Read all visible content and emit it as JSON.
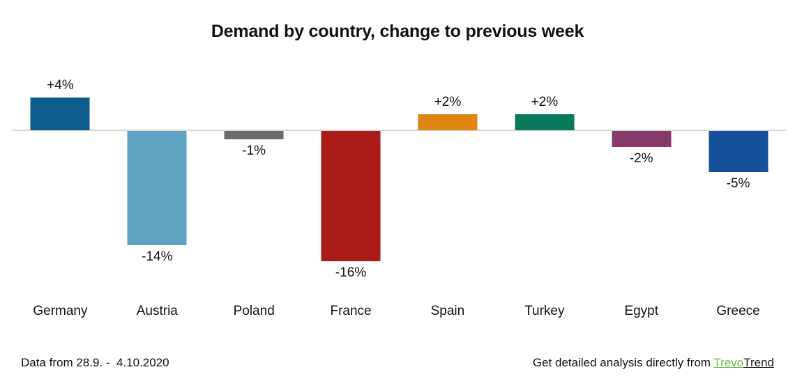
{
  "title": "Demand by country, change to previous week",
  "chart_data": {
    "type": "bar",
    "title": "Demand by country, change to previous week",
    "categories": [
      "Germany",
      "Austria",
      "Poland",
      "France",
      "Spain",
      "Turkey",
      "Egypt",
      "Greece"
    ],
    "values": [
      4,
      -14,
      -1,
      -16,
      2,
      2,
      -2,
      -5
    ],
    "value_labels": [
      "+4%",
      "-14%",
      "-1%",
      "-16%",
      "+2%",
      "+2%",
      "-2%",
      "-5%"
    ],
    "bar_colors": [
      "#0e5c8e",
      "#5fa3c2",
      "#6c6b69",
      "#aa1c17",
      "#e08511",
      "#077a5c",
      "#853a68",
      "#164f9c"
    ],
    "unit": "%",
    "xlabel": "",
    "ylabel": "",
    "ylim": [
      -16,
      4
    ],
    "grid": false,
    "legend": "none",
    "baseline_color": "#d9d9d9"
  },
  "footer": {
    "data_range": "Data from 28.9. -  4.10.2020",
    "cta_prefix": "Get detailed analysis directly from ",
    "brand_part1": "Trevo",
    "brand_part2": "Trend",
    "brand_green": "#6abf45"
  }
}
